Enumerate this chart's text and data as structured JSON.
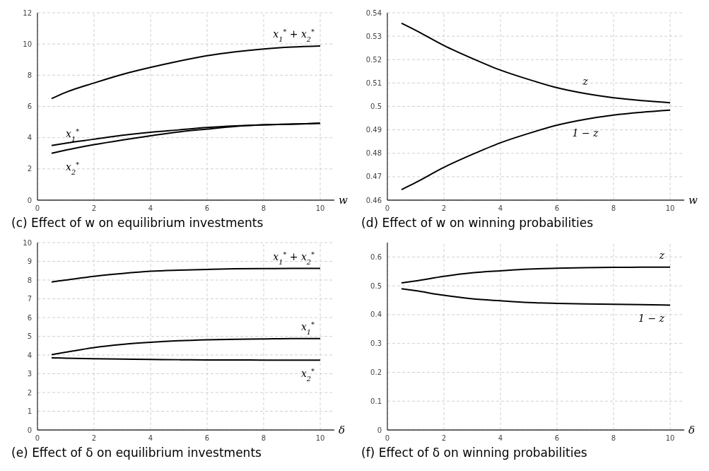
{
  "chart_data": [
    {
      "type": "line",
      "title": "(c) Effect of w on equilibrium investments",
      "xlabel": "w",
      "xlim": [
        0,
        10.5
      ],
      "xticks": [
        0,
        2,
        4,
        6,
        8,
        10
      ],
      "ylim": [
        0,
        12
      ],
      "yticks": [
        0,
        2,
        4,
        6,
        8,
        10,
        12
      ],
      "grid": true,
      "legend": false,
      "x": [
        0.5,
        1,
        2,
        3,
        4,
        5,
        6,
        7,
        8,
        9,
        10
      ],
      "series": [
        {
          "name": "x$_{1}$$^{*}$ + x$_{2}$$^{*}$",
          "color": "#000000",
          "values": [
            6.5,
            6.9,
            7.5,
            8.05,
            8.5,
            8.9,
            9.25,
            9.5,
            9.68,
            9.8,
            9.87
          ]
        },
        {
          "name": "x$_{1}$$^{*}$",
          "color": "#000000",
          "values": [
            3.5,
            3.65,
            3.9,
            4.15,
            4.35,
            4.5,
            4.65,
            4.75,
            4.82,
            4.87,
            4.92
          ]
        },
        {
          "name": "x$_{2}$$^{*}$",
          "color": "#000000",
          "values": [
            3.0,
            3.2,
            3.55,
            3.85,
            4.12,
            4.37,
            4.55,
            4.72,
            4.82,
            4.87,
            4.92
          ]
        }
      ]
    },
    {
      "type": "line",
      "title": "(d) Effect of w on winning probabilities",
      "xlabel": "w",
      "xlim": [
        0,
        10.5
      ],
      "xticks": [
        0,
        2,
        4,
        6,
        8,
        10
      ],
      "ylim": [
        0.46,
        0.54
      ],
      "yticks": [
        0.46,
        0.47,
        0.48,
        0.49,
        0.5,
        0.51,
        0.52,
        0.53,
        0.54
      ],
      "grid": true,
      "legend": false,
      "x": [
        0.5,
        1,
        2,
        3,
        4,
        5,
        6,
        7,
        8,
        9,
        10
      ],
      "series": [
        {
          "name": "z",
          "color": "#000000",
          "values": [
            0.5355,
            0.5325,
            0.526,
            0.5205,
            0.5155,
            0.5115,
            0.508,
            0.5055,
            0.5037,
            0.5025,
            0.5016
          ]
        },
        {
          "name": "1 − z",
          "color": "#000000",
          "values": [
            0.4645,
            0.4675,
            0.474,
            0.4795,
            0.4845,
            0.4885,
            0.492,
            0.4945,
            0.4963,
            0.4975,
            0.4984
          ]
        }
      ]
    },
    {
      "type": "line",
      "title": "(e) Effect of δ on equilibrium investments",
      "xlabel": "δ",
      "xlim": [
        0,
        10.5
      ],
      "xticks": [
        0,
        2,
        4,
        6,
        8,
        10
      ],
      "ylim": [
        0,
        10
      ],
      "yticks": [
        0,
        1,
        2,
        3,
        4,
        5,
        6,
        7,
        8,
        9,
        10
      ],
      "grid": true,
      "legend": false,
      "x": [
        0.5,
        1,
        2,
        3,
        4,
        5,
        6,
        7,
        8,
        9,
        10
      ],
      "series": [
        {
          "name": "x$_{1}$$^{*}$ + x$_{2}$$^{*}$",
          "color": "#000000",
          "values": [
            7.9,
            8.0,
            8.2,
            8.35,
            8.47,
            8.53,
            8.57,
            8.6,
            8.61,
            8.62,
            8.62
          ]
        },
        {
          "name": "x$_{1}$$^{*}$",
          "color": "#000000",
          "values": [
            4.02,
            4.15,
            4.4,
            4.57,
            4.68,
            4.76,
            4.81,
            4.84,
            4.86,
            4.88,
            4.88
          ]
        },
        {
          "name": "x$_{2}$$^{*}$",
          "color": "#000000",
          "values": [
            3.85,
            3.83,
            3.8,
            3.78,
            3.76,
            3.75,
            3.74,
            3.74,
            3.73,
            3.73,
            3.73
          ]
        }
      ]
    },
    {
      "type": "line",
      "title": "(f) Effect of δ on winning probabilities",
      "xlabel": "δ",
      "xlim": [
        0,
        10.5
      ],
      "xticks": [
        0,
        2,
        4,
        6,
        8,
        10
      ],
      "ylim": [
        0,
        0.65
      ],
      "yticks": [
        0,
        0.1,
        0.2,
        0.3,
        0.4,
        0.5,
        0.6
      ],
      "grid": true,
      "legend": false,
      "x": [
        0.5,
        1,
        2,
        3,
        4,
        5,
        6,
        7,
        8,
        9,
        10
      ],
      "series": [
        {
          "name": "z",
          "color": "#000000",
          "values": [
            0.51,
            0.517,
            0.533,
            0.545,
            0.552,
            0.558,
            0.561,
            0.563,
            0.564,
            0.565,
            0.565
          ]
        },
        {
          "name": "1 − z",
          "color": "#000000",
          "values": [
            0.49,
            0.483,
            0.467,
            0.455,
            0.448,
            0.442,
            0.439,
            0.437,
            0.436,
            0.435,
            0.433
          ]
        }
      ]
    }
  ]
}
